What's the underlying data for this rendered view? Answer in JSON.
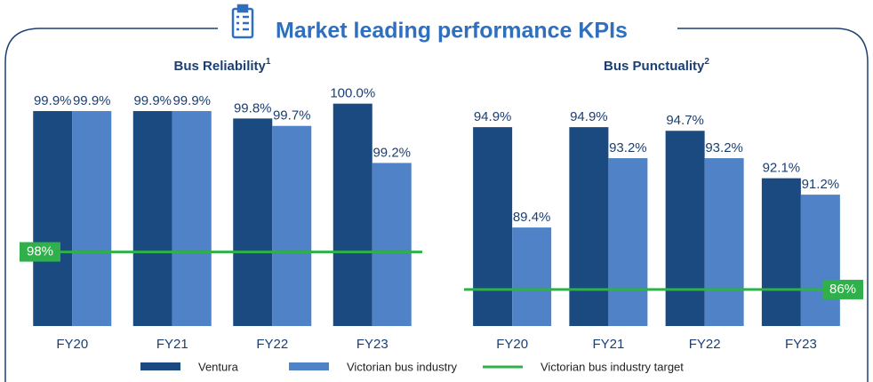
{
  "title": "Market leading performance KPIs",
  "chart_data": [
    {
      "type": "bar",
      "title": "Bus Reliability",
      "title_superscript": "1",
      "categories": [
        "FY20",
        "FY21",
        "FY22",
        "FY23"
      ],
      "series": [
        {
          "name": "Ventura",
          "color": "#1b4a80",
          "values": [
            99.9,
            99.9,
            99.8,
            100.0
          ],
          "value_labels": [
            "99.9%",
            "99.9%",
            "99.8%",
            "100.0%"
          ]
        },
        {
          "name": "Victorian bus industry",
          "color": "#4f82c6",
          "values": [
            99.9,
            99.9,
            99.7,
            99.2
          ],
          "value_labels": [
            "99.9%",
            "99.9%",
            "99.7%",
            "99.2%"
          ]
        }
      ],
      "target": {
        "name": "Victorian bus industry target",
        "color": "#2fb04a",
        "value": 98,
        "label": "98%",
        "corner": "left"
      },
      "ylim": [
        97,
        100.2
      ]
    },
    {
      "type": "bar",
      "title": "Bus Punctuality",
      "title_superscript": "2",
      "categories": [
        "FY20",
        "FY21",
        "FY22",
        "FY23"
      ],
      "series": [
        {
          "name": "Ventura",
          "color": "#1b4a80",
          "values": [
            94.9,
            94.9,
            94.7,
            92.1
          ],
          "value_labels": [
            "94.9%",
            "94.9%",
            "94.7%",
            "92.1%"
          ]
        },
        {
          "name": "Victorian bus industry",
          "color": "#4f82c6",
          "values": [
            89.4,
            93.2,
            93.2,
            91.2
          ],
          "value_labels": [
            "89.4%",
            "93.2%",
            "93.2%",
            "91.2%"
          ]
        }
      ],
      "target": {
        "name": "Victorian bus industry target",
        "color": "#2fb04a",
        "value": 86,
        "label": "86%",
        "corner": "right"
      },
      "ylim": [
        84,
        97
      ]
    }
  ]
}
